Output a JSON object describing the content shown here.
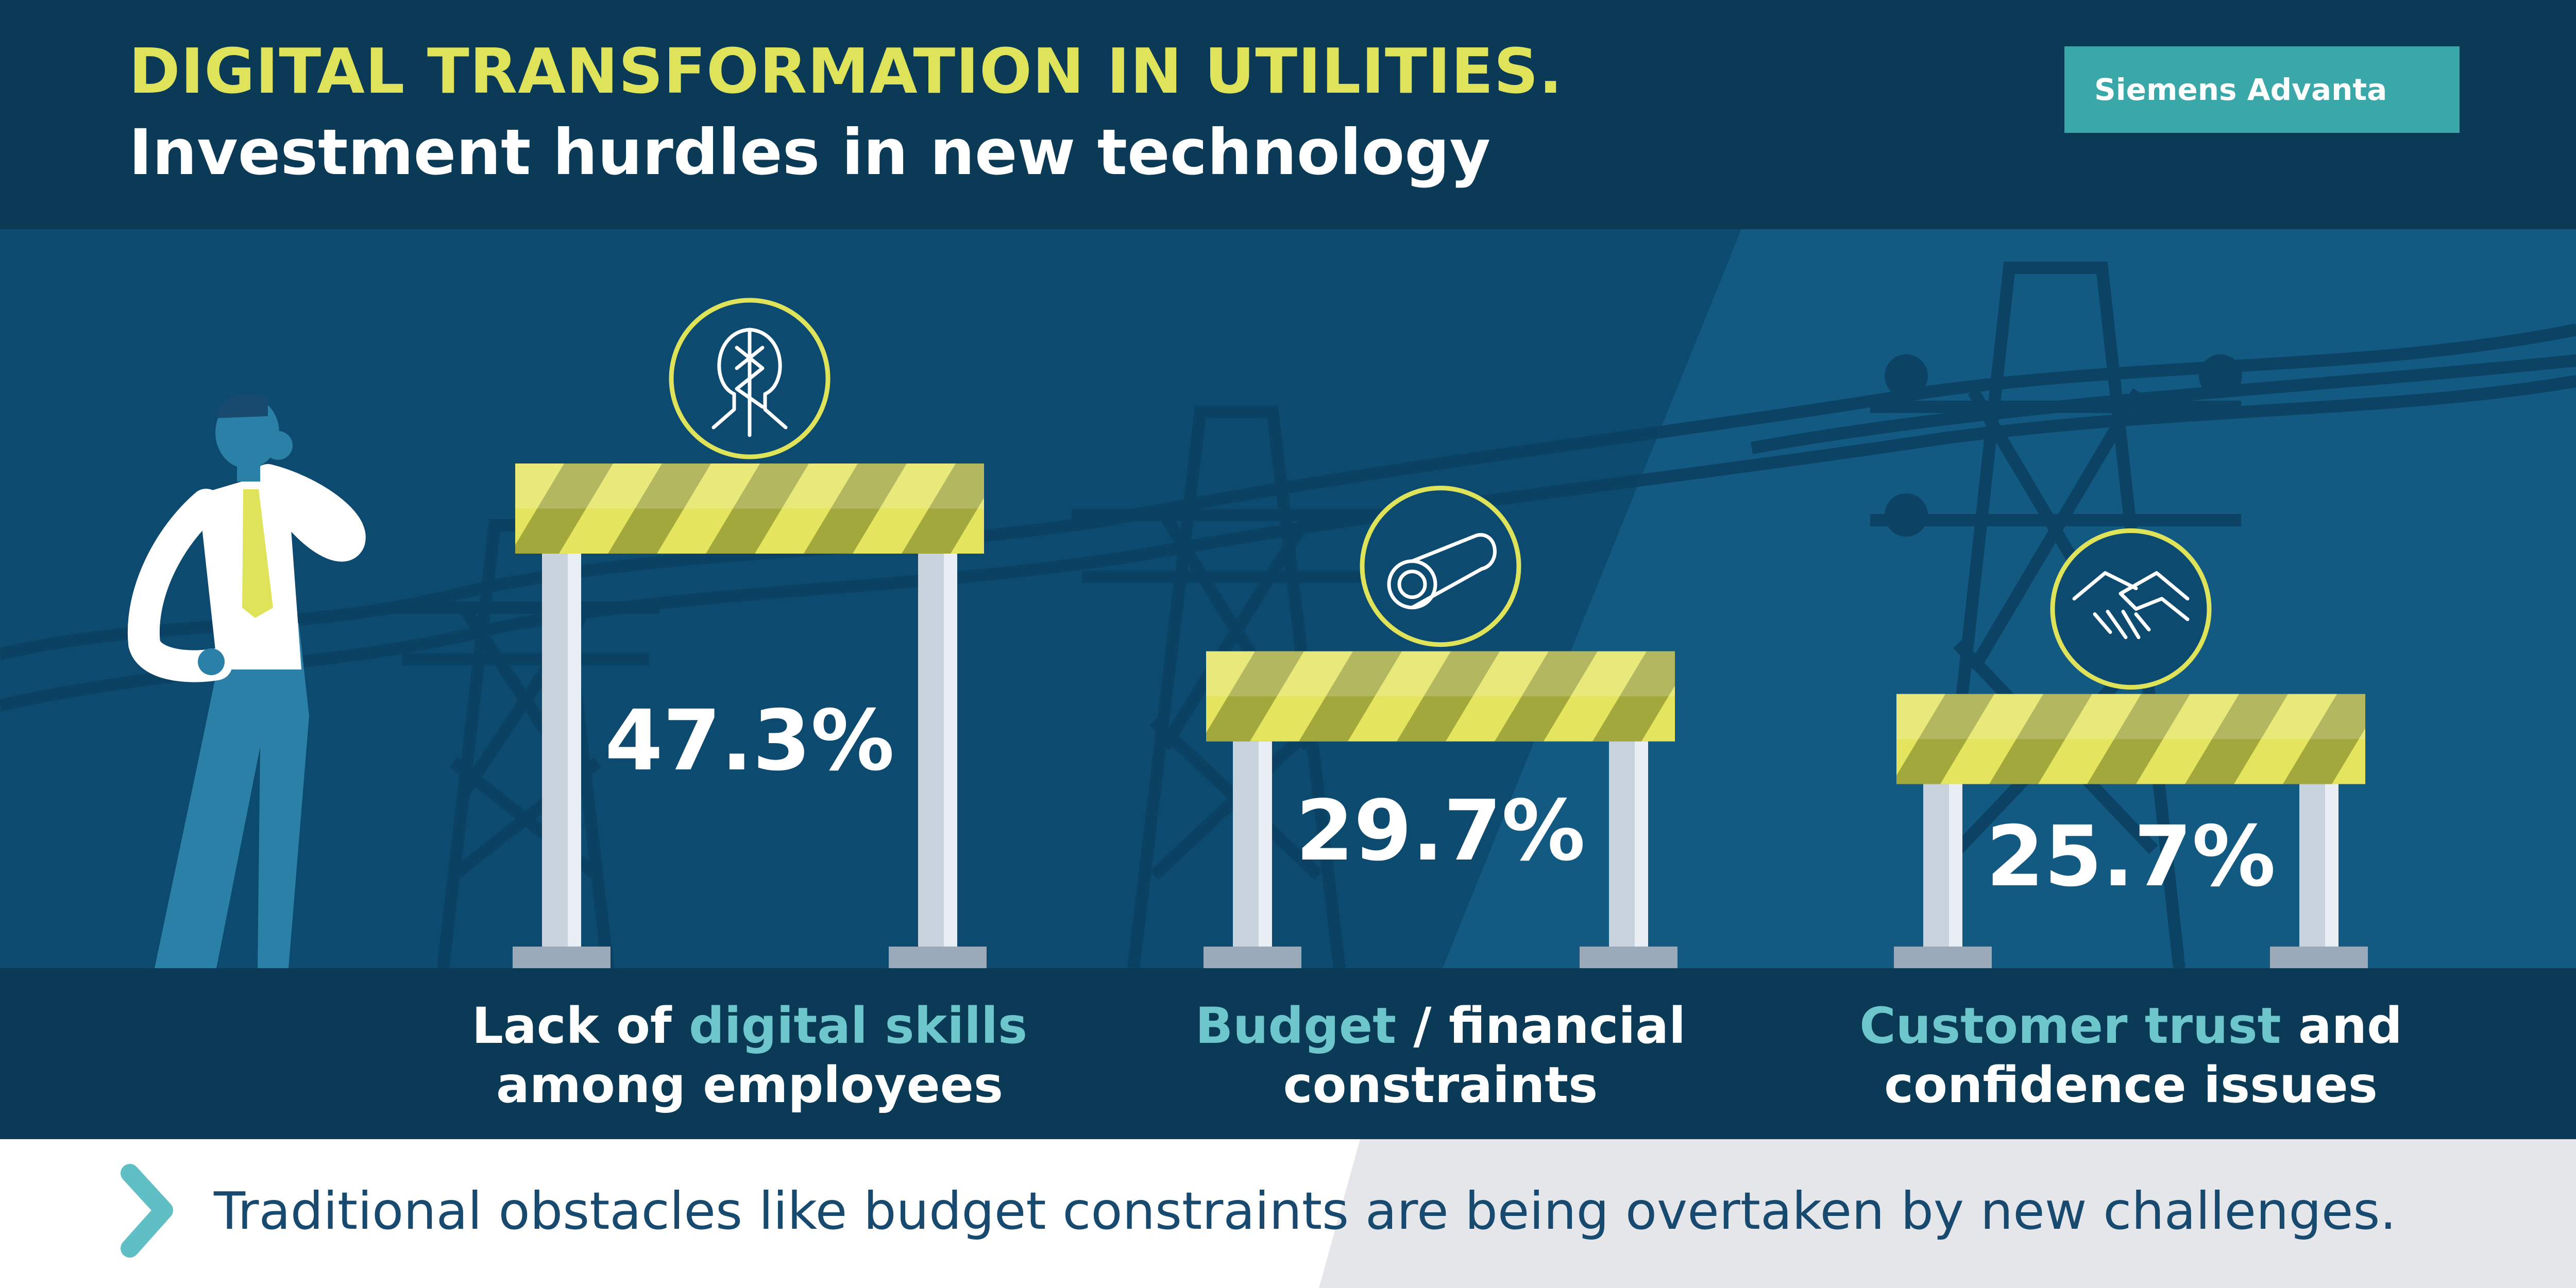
{
  "header": {
    "title": "DIGITAL TRANSFORMATION IN UTILITIES.",
    "subtitle": "Investment hurdles in new technology",
    "brand": "Siemens Advanta"
  },
  "chart_data": {
    "type": "bar",
    "categories": [
      "Lack of digital skills among employees",
      "Budget / financial constraints",
      "Customer trust and confidence issues"
    ],
    "values": [
      47.3,
      29.7,
      25.7
    ],
    "value_labels": [
      "47.3%",
      "29.7%",
      "25.7%"
    ],
    "unit": "%"
  },
  "labels": [
    {
      "line1_pre": "Lack of ",
      "line1_hl": "digital skills",
      "line1_post": "",
      "line2": "among employees"
    },
    {
      "line1_pre": "",
      "line1_hl": "Budget",
      "line1_post": " / financial",
      "line2": "constraints"
    },
    {
      "line1_pre": "",
      "line1_hl": "Customer trust",
      "line1_post": " and",
      "line2": "confidence issues"
    }
  ],
  "icons": [
    "head-circuit-icon",
    "money-roll-icon",
    "handshake-icon"
  ],
  "footer": {
    "text": "Traditional obstacles like budget constraints are being overtaken by new challenges."
  },
  "colors": {
    "background": "#0d4a6f",
    "header_band": "#0a3a55",
    "title_yellow": "#dfe35a",
    "accent_teal": "#6cc6cc",
    "brand_teal": "#3aa8a8",
    "barrier_light": "#e4e45e",
    "barrier_dark": "#a3a83c",
    "footer_bg": "#ffffff",
    "footer_text": "#174a6e"
  }
}
